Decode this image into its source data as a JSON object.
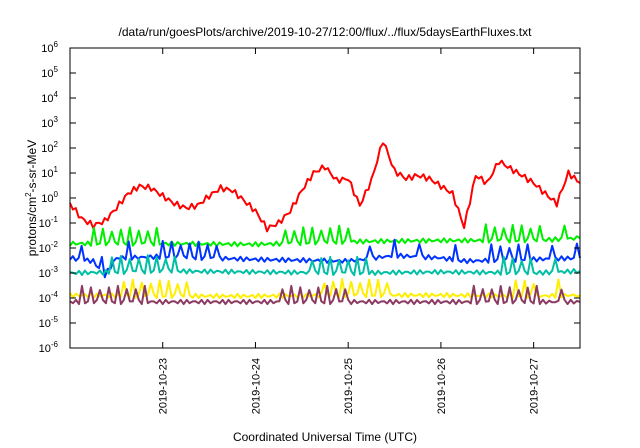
{
  "chart_data": {
    "type": "line",
    "title": "/data/run/goesPlots/archive/2019-10-27/12:00/flux/../flux/5daysEarthFluxes.txt",
    "xlabel": "Coordinated Universal Time (UTC)",
    "ylabel": {
      "base": "protons/cm",
      "sup": "2",
      "rest": "-s-sr-MeV"
    },
    "y_scale": "log",
    "ylim": [
      1e-06,
      1000000.0
    ],
    "y_ticks": [
      {
        "base": "10",
        "exp": "-6",
        "value": 1e-06
      },
      {
        "base": "10",
        "exp": "-5",
        "value": 1e-05
      },
      {
        "base": "10",
        "exp": "-4",
        "value": 0.0001
      },
      {
        "base": "10",
        "exp": "-3",
        "value": 0.001
      },
      {
        "base": "10",
        "exp": "-2",
        "value": 0.01
      },
      {
        "base": "10",
        "exp": "-1",
        "value": 0.1
      },
      {
        "base": "10",
        "exp": "0",
        "value": 1
      },
      {
        "base": "10",
        "exp": "1",
        "value": 10
      },
      {
        "base": "10",
        "exp": "2",
        "value": 100
      },
      {
        "base": "10",
        "exp": "3",
        "value": 1000
      },
      {
        "base": "10",
        "exp": "4",
        "value": 10000
      },
      {
        "base": "10",
        "exp": "5",
        "value": 100000
      },
      {
        "base": "10",
        "exp": "6",
        "value": 1000000
      }
    ],
    "xlim": [
      "2019-10-22 00:00",
      "2019-10-27 12:00"
    ],
    "x_ticks": [
      "2019-10-23",
      "2019-10-24",
      "2019-10-25",
      "2019-10-26",
      "2019-10-27"
    ],
    "grid": false,
    "legend": "none",
    "series": [
      {
        "color": "#ff0000",
        "x": [
          "2019-10-22 00:00",
          "2019-10-22 03:00",
          "2019-10-22 06:00",
          "2019-10-22 09:00",
          "2019-10-22 12:00",
          "2019-10-22 15:00",
          "2019-10-22 18:00",
          "2019-10-22 21:00",
          "2019-10-23 00:00",
          "2019-10-23 03:00",
          "2019-10-23 06:00",
          "2019-10-23 09:00",
          "2019-10-23 12:00",
          "2019-10-23 15:00",
          "2019-10-23 18:00",
          "2019-10-23 21:00",
          "2019-10-24 00:00",
          "2019-10-24 03:00",
          "2019-10-24 06:00",
          "2019-10-24 09:00",
          "2019-10-24 12:00",
          "2019-10-24 15:00",
          "2019-10-24 18:00",
          "2019-10-24 21:00",
          "2019-10-25 00:00",
          "2019-10-25 03:00",
          "2019-10-25 06:00",
          "2019-10-25 09:00",
          "2019-10-25 12:00",
          "2019-10-25 15:00",
          "2019-10-25 18:00",
          "2019-10-25 21:00",
          "2019-10-26 00:00",
          "2019-10-26 03:00",
          "2019-10-26 06:00",
          "2019-10-26 09:00",
          "2019-10-26 12:00",
          "2019-10-26 15:00",
          "2019-10-26 18:00",
          "2019-10-26 21:00",
          "2019-10-27 00:00",
          "2019-10-27 03:00",
          "2019-10-27 06:00",
          "2019-10-27 09:00",
          "2019-10-27 12:00"
        ],
        "y": [
          0.6,
          0.15,
          0.08,
          0.12,
          0.4,
          1.5,
          3,
          2.5,
          1.2,
          0.6,
          0.4,
          0.5,
          1.2,
          2.5,
          2,
          0.8,
          0.3,
          0.06,
          0.1,
          0.3,
          2,
          10,
          18,
          5,
          6,
          0.5,
          5,
          200,
          12,
          6,
          8,
          6,
          3,
          1.5,
          0.07,
          8,
          4,
          30,
          15,
          8,
          4,
          1.5,
          0.6,
          10,
          4
        ]
      },
      {
        "color": "#00ee00",
        "x": [
          "2019-10-22 00:00",
          "2019-10-23 00:00",
          "2019-10-24 00:00",
          "2019-10-25 00:00",
          "2019-10-26 00:00",
          "2019-10-27 00:00",
          "2019-10-27 12:00"
        ],
        "y": [
          0.015,
          0.015,
          0.014,
          0.018,
          0.02,
          0.02,
          0.025
        ]
      },
      {
        "color": "#0033ff",
        "x": [
          "2019-10-22 00:00",
          "2019-10-22 06:00",
          "2019-10-22 09:00",
          "2019-10-22 12:00",
          "2019-10-23 00:00",
          "2019-10-24 00:00",
          "2019-10-25 00:00",
          "2019-10-25 12:00",
          "2019-10-26 00:00",
          "2019-10-26 06:00",
          "2019-10-27 00:00",
          "2019-10-27 12:00"
        ],
        "y": [
          0.004,
          0.003,
          0.0008,
          0.004,
          0.0045,
          0.0035,
          0.003,
          0.005,
          0.004,
          0.003,
          0.0035,
          0.004
        ]
      },
      {
        "color": "#00bfa5",
        "x": [
          "2019-10-22 00:00",
          "2019-10-23 00:00",
          "2019-10-24 00:00",
          "2019-10-25 00:00",
          "2019-10-26 00:00",
          "2019-10-27 00:00",
          "2019-10-27 12:00"
        ],
        "y": [
          0.001,
          0.0012,
          0.0011,
          0.001,
          0.0011,
          0.001,
          0.0012
        ]
      },
      {
        "color": "#ffee00",
        "x": [
          "2019-10-22 00:00",
          "2019-10-23 00:00",
          "2019-10-24 00:00",
          "2019-10-25 00:00",
          "2019-10-26 00:00",
          "2019-10-27 00:00",
          "2019-10-27 12:00"
        ],
        "y": [
          0.00013,
          0.00012,
          0.00012,
          0.00013,
          0.00013,
          0.00012,
          0.00013
        ]
      },
      {
        "color": "#8b3a62",
        "x": [
          "2019-10-22 00:00",
          "2019-10-23 00:00",
          "2019-10-24 00:00",
          "2019-10-25 00:00",
          "2019-10-26 00:00",
          "2019-10-27 00:00",
          "2019-10-27 12:00"
        ],
        "y": [
          7e-05,
          7e-05,
          7e-05,
          7e-05,
          7e-05,
          7e-05,
          7e-05
        ]
      }
    ]
  }
}
